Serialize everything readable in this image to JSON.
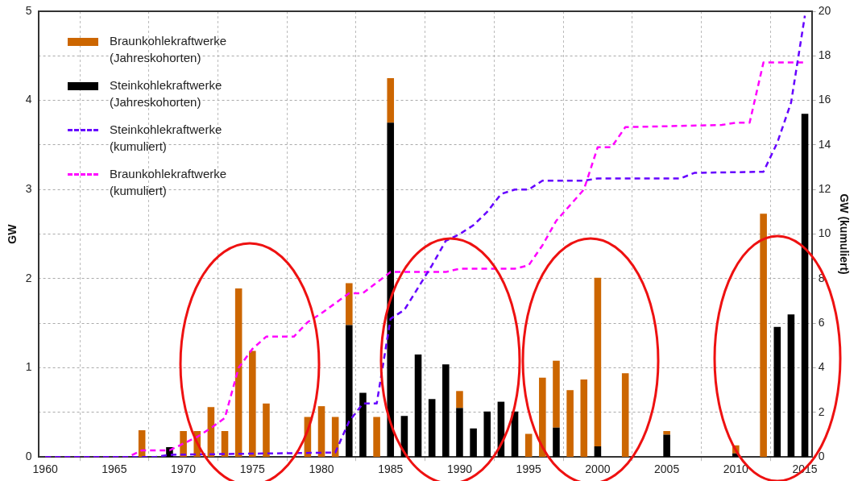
{
  "chart_data": {
    "type": "bar",
    "stacked": true,
    "x": [
      1967,
      1969,
      1970,
      1971,
      1972,
      1973,
      1974,
      1975,
      1976,
      1979,
      1980,
      1981,
      1982,
      1983,
      1984,
      1985,
      1986,
      1987,
      1988,
      1989,
      1990,
      1991,
      1992,
      1993,
      1994,
      1995,
      1996,
      1997,
      1998,
      1999,
      2000,
      2002,
      2005,
      2010,
      2012,
      2013,
      2014,
      2015
    ],
    "series": [
      {
        "name": "Steinkohlekraftwerke (Jahreskohorten)",
        "color": "#000000",
        "values": [
          null,
          0.11,
          null,
          null,
          null,
          null,
          null,
          null,
          null,
          null,
          null,
          null,
          1.48,
          0.72,
          null,
          3.75,
          0.46,
          1.15,
          0.65,
          1.04,
          0.55,
          0.32,
          0.51,
          0.62,
          0.51,
          null,
          null,
          0.33,
          null,
          null,
          0.12,
          null,
          0.25,
          0.04,
          null,
          1.46,
          1.6,
          3.85
        ]
      },
      {
        "name": "Braunkohlekraftwerke (Jahreskohorten)",
        "color": "#cc6600",
        "values": [
          0.3,
          null,
          0.29,
          0.29,
          0.56,
          0.29,
          1.89,
          1.19,
          0.6,
          0.45,
          0.57,
          0.45,
          0.47,
          null,
          0.45,
          0.5,
          null,
          null,
          null,
          null,
          0.19,
          null,
          null,
          null,
          null,
          0.26,
          0.89,
          0.75,
          0.75,
          0.87,
          1.89,
          0.94,
          0.04,
          0.09,
          2.73,
          null,
          null,
          null
        ]
      },
      {
        "name": "Steinkohlekraftwerke (kumuliert)",
        "type": "line",
        "axis": "y2",
        "line_style": "dashed",
        "color": "#6600ff",
        "x": [
          1960,
          1968,
          1969,
          1981,
          1982,
          1983,
          1984,
          1985,
          1986,
          1987,
          1988,
          1989,
          1990,
          1991,
          1992,
          1993,
          1994,
          1995,
          1996,
          1999,
          2000,
          2006,
          2007,
          2012,
          2013,
          2014,
          2015
        ],
        "values": [
          0,
          0,
          0.1,
          0.2,
          1.6,
          2.4,
          2.4,
          6.2,
          6.6,
          7.6,
          8.6,
          9.7,
          10.0,
          10.4,
          11.0,
          11.8,
          12.0,
          12.0,
          12.4,
          12.4,
          12.5,
          12.5,
          12.75,
          12.8,
          14.1,
          15.9,
          19.8
        ]
      },
      {
        "name": "Braunkohlekraftwerke (kumuliert)",
        "type": "line",
        "axis": "y2",
        "line_style": "dashed",
        "color": "#ff00ff",
        "x": [
          1960,
          1966,
          1967,
          1969,
          1970,
          1971,
          1972,
          1973,
          1974,
          1975,
          1976,
          1978,
          1979,
          1980,
          1981,
          1982,
          1983,
          1985,
          1989,
          1990,
          1994,
          1995,
          1996,
          1997,
          1998,
          1999,
          2000,
          2001,
          2002,
          2009,
          2010,
          2011,
          2012,
          2015
        ],
        "values": [
          0,
          0,
          0.3,
          0.3,
          0.6,
          0.9,
          1.3,
          1.75,
          4.0,
          4.85,
          5.4,
          5.4,
          6.05,
          6.45,
          6.9,
          7.35,
          7.35,
          8.3,
          8.3,
          8.45,
          8.45,
          8.6,
          9.5,
          10.6,
          11.3,
          12.0,
          13.9,
          13.9,
          14.8,
          14.9,
          15.0,
          15.0,
          17.7,
          17.7
        ]
      }
    ],
    "ylabel": "GW",
    "y2label": "GW (kumuliert)",
    "xlim": [
      1959.5,
      2015.5
    ],
    "xticks": [
      1960,
      1965,
      1970,
      1975,
      1980,
      1985,
      1990,
      1995,
      2000,
      2005,
      2010,
      2015
    ],
    "ylim": [
      0,
      5
    ],
    "yticks": [
      0,
      1,
      2,
      3,
      4,
      5
    ],
    "y2lim": [
      0,
      20
    ],
    "y2ticks": [
      0,
      2,
      4,
      6,
      8,
      10,
      12,
      14,
      16,
      18,
      20
    ],
    "grid": true,
    "legend": "top left",
    "marker": "none"
  }
}
